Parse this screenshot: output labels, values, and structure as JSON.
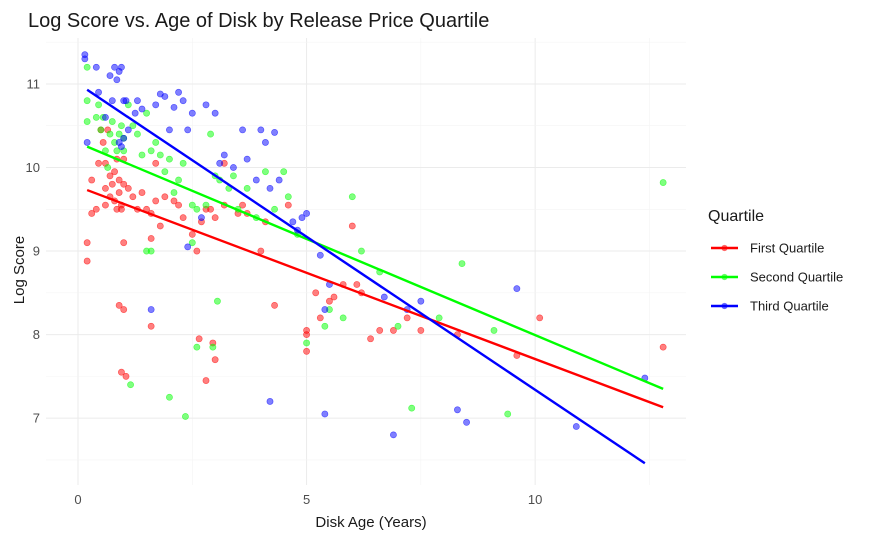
{
  "chart_data": {
    "type": "scatter",
    "title": "Log Score vs. Age of Disk by Release Price Quartile",
    "xlabel": "Disk Age (Years)",
    "ylabel": "Log Score",
    "xlim": [
      -0.7,
      13.3
    ],
    "ylim": [
      6.2,
      11.55
    ],
    "xticks": [
      0,
      5,
      10
    ],
    "yticks": [
      7,
      8,
      9,
      10,
      11
    ],
    "grid": true,
    "legend": {
      "title": "Quartile",
      "position": "right"
    },
    "series": [
      {
        "name": "First Quartile",
        "color": "#ff0000",
        "trend": {
          "x": [
            0.2,
            12.8
          ],
          "y": [
            9.73,
            7.13
          ]
        },
        "points": [
          [
            0.2,
            9.1
          ],
          [
            0.2,
            8.88
          ],
          [
            0.3,
            9.45
          ],
          [
            0.4,
            9.5
          ],
          [
            0.3,
            9.85
          ],
          [
            0.5,
            10.45
          ],
          [
            0.55,
            10.3
          ],
          [
            0.6,
            10.05
          ],
          [
            0.6,
            9.75
          ],
          [
            0.6,
            9.55
          ],
          [
            0.65,
            10.45
          ],
          [
            0.7,
            9.9
          ],
          [
            0.7,
            9.65
          ],
          [
            0.75,
            9.8
          ],
          [
            0.8,
            9.95
          ],
          [
            0.8,
            9.6
          ],
          [
            0.85,
            9.5
          ],
          [
            0.85,
            10.1
          ],
          [
            0.9,
            9.7
          ],
          [
            0.9,
            9.85
          ],
          [
            0.95,
            9.55
          ],
          [
            0.95,
            9.5
          ],
          [
            1.0,
            10.1
          ],
          [
            1.0,
            9.8
          ],
          [
            1.0,
            9.1
          ],
          [
            0.9,
            8.35
          ],
          [
            1.0,
            8.3
          ],
          [
            0.95,
            7.55
          ],
          [
            1.05,
            7.5
          ],
          [
            1.1,
            9.75
          ],
          [
            1.2,
            9.65
          ],
          [
            1.3,
            9.5
          ],
          [
            1.4,
            9.7
          ],
          [
            1.5,
            9.5
          ],
          [
            1.6,
            9.45
          ],
          [
            1.7,
            9.6
          ],
          [
            1.8,
            9.3
          ],
          [
            1.9,
            9.65
          ],
          [
            1.6,
            9.15
          ],
          [
            1.6,
            8.1
          ],
          [
            2.1,
            9.6
          ],
          [
            2.2,
            9.55
          ],
          [
            2.3,
            9.4
          ],
          [
            2.5,
            9.2
          ],
          [
            2.6,
            9.0
          ],
          [
            2.7,
            9.35
          ],
          [
            2.8,
            9.5
          ],
          [
            2.9,
            9.5
          ],
          [
            3.0,
            9.4
          ],
          [
            3.2,
            9.55
          ],
          [
            2.65,
            7.95
          ],
          [
            2.8,
            7.45
          ],
          [
            2.95,
            7.9
          ],
          [
            3.0,
            7.7
          ],
          [
            3.2,
            10.05
          ],
          [
            3.5,
            9.45
          ],
          [
            3.6,
            9.55
          ],
          [
            3.7,
            9.45
          ],
          [
            4.0,
            9.0
          ],
          [
            4.1,
            9.35
          ],
          [
            4.3,
            8.35
          ],
          [
            4.6,
            9.55
          ],
          [
            5.0,
            8.05
          ],
          [
            5.0,
            8.0
          ],
          [
            5.0,
            7.8
          ],
          [
            5.2,
            8.5
          ],
          [
            5.3,
            8.2
          ],
          [
            5.5,
            8.4
          ],
          [
            5.6,
            8.45
          ],
          [
            5.8,
            8.6
          ],
          [
            6.0,
            9.3
          ],
          [
            6.1,
            8.6
          ],
          [
            6.2,
            8.5
          ],
          [
            6.4,
            7.95
          ],
          [
            6.6,
            8.05
          ],
          [
            6.9,
            8.05
          ],
          [
            7.2,
            8.2
          ],
          [
            7.5,
            8.05
          ],
          [
            8.3,
            8.0
          ],
          [
            9.6,
            7.75
          ],
          [
            10.1,
            8.2
          ],
          [
            12.8,
            7.85
          ],
          [
            0.45,
            10.05
          ],
          [
            1.7,
            10.05
          ]
        ]
      },
      {
        "name": "Second Quartile",
        "color": "#00ff00",
        "trend": {
          "x": [
            0.2,
            12.8
          ],
          "y": [
            10.25,
            7.35
          ]
        },
        "points": [
          [
            0.2,
            11.2
          ],
          [
            0.2,
            10.8
          ],
          [
            0.2,
            10.55
          ],
          [
            0.4,
            10.6
          ],
          [
            0.45,
            10.75
          ],
          [
            0.5,
            10.45
          ],
          [
            0.55,
            10.6
          ],
          [
            0.6,
            10.2
          ],
          [
            0.65,
            10.0
          ],
          [
            0.7,
            10.4
          ],
          [
            0.75,
            10.55
          ],
          [
            0.8,
            10.3
          ],
          [
            0.85,
            10.2
          ],
          [
            0.9,
            10.4
          ],
          [
            0.95,
            10.5
          ],
          [
            1.0,
            10.2
          ],
          [
            1.0,
            10.35
          ],
          [
            1.1,
            10.75
          ],
          [
            1.2,
            10.5
          ],
          [
            1.3,
            10.4
          ],
          [
            1.4,
            10.15
          ],
          [
            1.5,
            10.65
          ],
          [
            1.6,
            10.2
          ],
          [
            1.7,
            10.3
          ],
          [
            1.8,
            10.15
          ],
          [
            1.9,
            9.95
          ],
          [
            2.0,
            10.1
          ],
          [
            2.1,
            9.7
          ],
          [
            2.2,
            9.85
          ],
          [
            2.3,
            10.05
          ],
          [
            2.5,
            9.55
          ],
          [
            2.6,
            9.5
          ],
          [
            2.8,
            9.55
          ],
          [
            2.9,
            10.4
          ],
          [
            3.0,
            9.9
          ],
          [
            3.1,
            9.85
          ],
          [
            3.3,
            9.75
          ],
          [
            3.4,
            9.9
          ],
          [
            3.5,
            9.5
          ],
          [
            3.7,
            9.75
          ],
          [
            3.9,
            9.4
          ],
          [
            4.1,
            9.95
          ],
          [
            4.3,
            9.5
          ],
          [
            4.5,
            9.95
          ],
          [
            4.6,
            9.65
          ],
          [
            4.8,
            9.2
          ],
          [
            5.0,
            7.9
          ],
          [
            5.4,
            8.1
          ],
          [
            5.5,
            8.3
          ],
          [
            5.8,
            8.2
          ],
          [
            6.0,
            9.65
          ],
          [
            6.2,
            9.0
          ],
          [
            6.6,
            8.75
          ],
          [
            7.0,
            8.1
          ],
          [
            7.3,
            7.12
          ],
          [
            7.9,
            8.2
          ],
          [
            8.4,
            8.85
          ],
          [
            9.1,
            8.05
          ],
          [
            9.4,
            7.05
          ],
          [
            12.8,
            9.82
          ],
          [
            1.5,
            9.0
          ],
          [
            1.6,
            9.0
          ],
          [
            2.0,
            7.25
          ],
          [
            2.35,
            7.02
          ],
          [
            2.5,
            9.1
          ],
          [
            2.6,
            7.85
          ],
          [
            2.95,
            7.85
          ],
          [
            3.05,
            8.4
          ],
          [
            1.15,
            7.4
          ]
        ]
      },
      {
        "name": "Third Quartile",
        "color": "#0000ff",
        "trend": {
          "x": [
            0.2,
            12.4
          ],
          "y": [
            10.93,
            6.46
          ]
        },
        "points": [
          [
            0.15,
            11.35
          ],
          [
            0.15,
            11.3
          ],
          [
            0.2,
            10.3
          ],
          [
            0.4,
            11.2
          ],
          [
            0.45,
            10.9
          ],
          [
            0.6,
            10.6
          ],
          [
            0.7,
            11.1
          ],
          [
            0.75,
            10.8
          ],
          [
            0.8,
            11.2
          ],
          [
            0.85,
            11.05
          ],
          [
            0.9,
            11.15
          ],
          [
            0.95,
            11.2
          ],
          [
            1.0,
            10.8
          ],
          [
            1.05,
            10.8
          ],
          [
            1.1,
            10.45
          ],
          [
            0.9,
            10.3
          ],
          [
            0.95,
            10.25
          ],
          [
            1.0,
            10.35
          ],
          [
            1.3,
            10.8
          ],
          [
            1.4,
            10.7
          ],
          [
            1.7,
            10.75
          ],
          [
            1.8,
            10.88
          ],
          [
            1.9,
            10.85
          ],
          [
            2.0,
            10.45
          ],
          [
            2.1,
            10.72
          ],
          [
            2.2,
            10.9
          ],
          [
            2.3,
            10.8
          ],
          [
            2.4,
            10.45
          ],
          [
            2.5,
            10.65
          ],
          [
            2.8,
            10.75
          ],
          [
            3.0,
            10.65
          ],
          [
            3.2,
            10.15
          ],
          [
            3.4,
            10.0
          ],
          [
            3.6,
            10.45
          ],
          [
            3.7,
            10.1
          ],
          [
            4.0,
            10.45
          ],
          [
            4.1,
            10.3
          ],
          [
            4.2,
            9.75
          ],
          [
            4.4,
            9.85
          ],
          [
            4.7,
            9.35
          ],
          [
            4.8,
            9.25
          ],
          [
            4.9,
            9.4
          ],
          [
            5.0,
            9.45
          ],
          [
            5.3,
            8.95
          ],
          [
            5.4,
            8.3
          ],
          [
            5.5,
            8.6
          ],
          [
            6.7,
            8.45
          ],
          [
            6.9,
            6.8
          ],
          [
            7.2,
            8.3
          ],
          [
            7.5,
            8.4
          ],
          [
            8.3,
            7.1
          ],
          [
            8.5,
            6.95
          ],
          [
            9.6,
            8.55
          ],
          [
            10.9,
            6.9
          ],
          [
            12.4,
            7.48
          ],
          [
            1.6,
            8.3
          ],
          [
            2.4,
            9.05
          ],
          [
            2.7,
            9.4
          ],
          [
            3.1,
            10.05
          ],
          [
            3.9,
            9.85
          ],
          [
            4.2,
            7.2
          ],
          [
            5.4,
            7.05
          ],
          [
            4.3,
            10.42
          ],
          [
            1.25,
            10.65
          ]
        ]
      }
    ]
  }
}
